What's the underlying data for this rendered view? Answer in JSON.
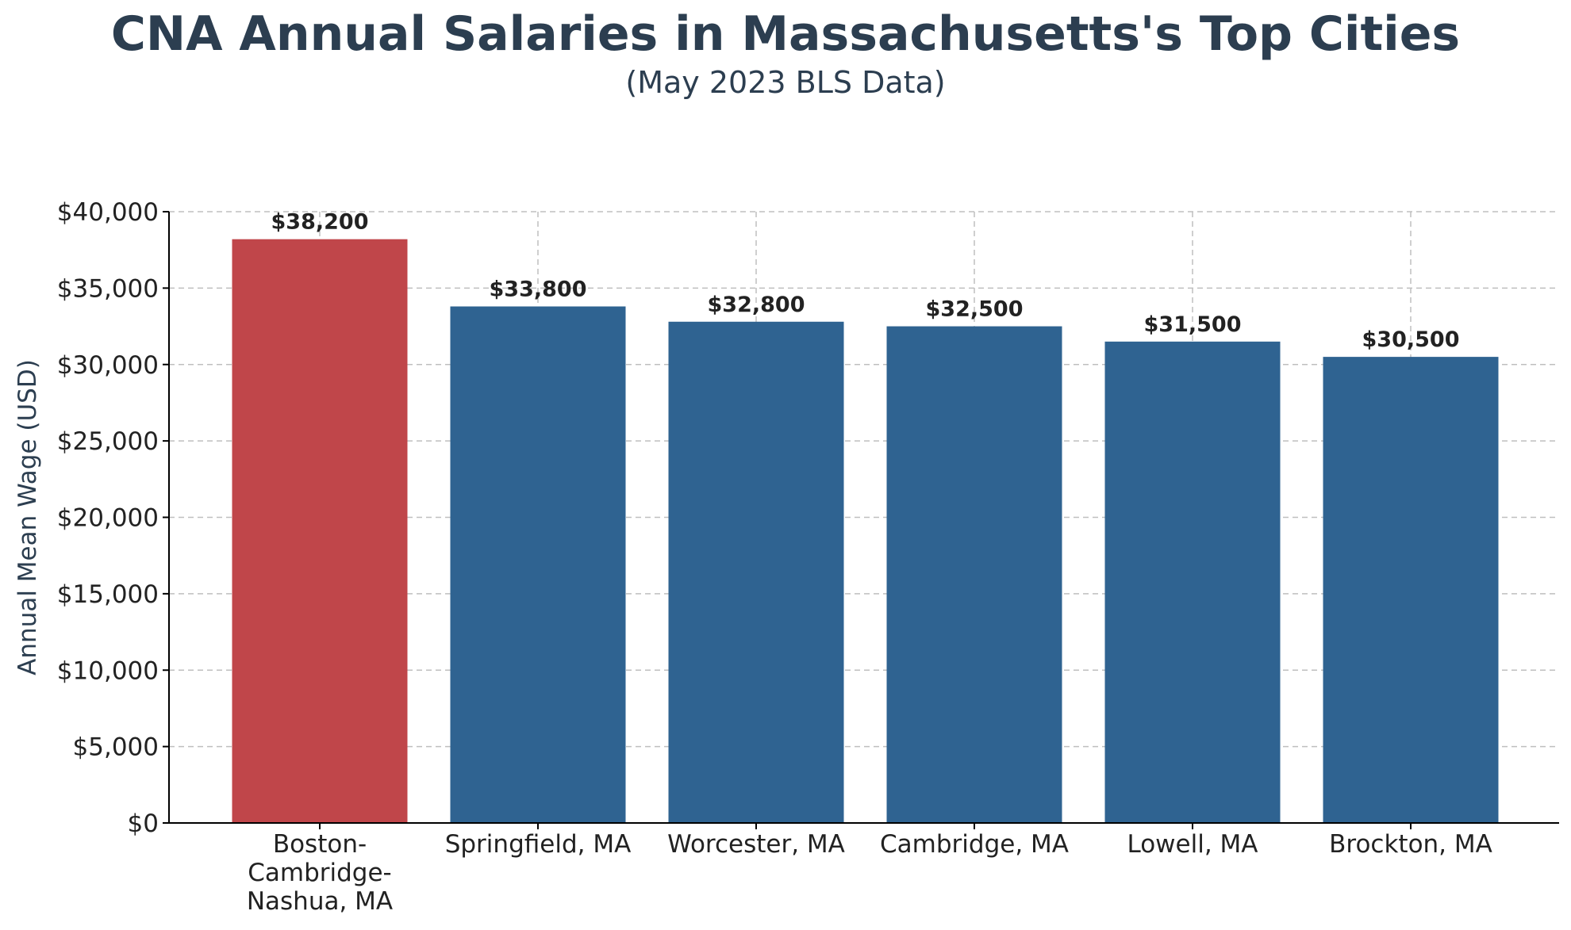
{
  "title": "CNA Annual Salaries in Massachusetts's Top Cities",
  "subtitle": "(May 2023 BLS Data)",
  "colors": {
    "highlight": "#c0464a",
    "bar": "#2f6391",
    "grid": "#bfbfbf",
    "axis": "#000000",
    "title": "#2c3e50",
    "label_text": "#222222"
  },
  "chart_data": {
    "type": "bar",
    "title": "CNA Annual Salaries in Massachusetts's Top Cities",
    "subtitle": "(May 2023 BLS Data)",
    "xlabel": "",
    "ylabel": "Annual Mean Wage (USD)",
    "ylim": [
      0,
      40000
    ],
    "yticks": [
      0,
      5000,
      10000,
      15000,
      20000,
      25000,
      30000,
      35000,
      40000
    ],
    "ytick_labels": [
      "$0",
      "$5,000",
      "$10,000",
      "$15,000",
      "$20,000",
      "$25,000",
      "$30,000",
      "$35,000",
      "$40,000"
    ],
    "categories": [
      [
        "Boston-",
        "Cambridge-",
        "Nashua, MA"
      ],
      [
        "Springfield, MA"
      ],
      [
        "Worcester, MA"
      ],
      [
        "Cambridge, MA"
      ],
      [
        "Lowell, MA"
      ],
      [
        "Brockton, MA"
      ]
    ],
    "values": [
      38200,
      33800,
      32800,
      32500,
      31500,
      30500
    ],
    "value_labels": [
      "$38,200",
      "$33,800",
      "$32,800",
      "$32,500",
      "$31,500",
      "$30,500"
    ],
    "highlighted_index": 0,
    "grid": true
  }
}
